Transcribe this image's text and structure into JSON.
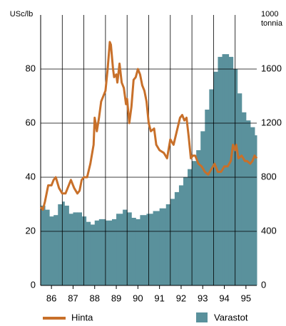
{
  "chart_data": {
    "type": "line-area-dual",
    "ylabel": "USc/lb",
    "y2label": [
      "1000",
      "tonnia"
    ],
    "xlim": [
      86,
      96
    ],
    "xticks": [
      {
        "value": 86.5,
        "label": "86"
      },
      {
        "value": 87.5,
        "label": "87"
      },
      {
        "value": 88.5,
        "label": "88"
      },
      {
        "value": 89.5,
        "label": "89"
      },
      {
        "value": 90.5,
        "label": "90"
      },
      {
        "value": 91.5,
        "label": "91"
      },
      {
        "value": 92.5,
        "label": "92"
      },
      {
        "value": 93.5,
        "label": "93"
      },
      {
        "value": 94.5,
        "label": "94"
      },
      {
        "value": 95.5,
        "label": "95"
      }
    ],
    "ylim": [
      0,
      100
    ],
    "yticks": [
      0,
      20,
      40,
      60,
      80
    ],
    "y2lim": [
      0,
      2000
    ],
    "y2ticks": [
      0,
      400,
      800,
      1200,
      1600
    ],
    "grid": true,
    "series": [
      {
        "name": "Hinta",
        "kind": "line",
        "color": "#c8702a",
        "x": [
          86.0,
          86.1,
          86.2,
          86.35,
          86.5,
          86.6,
          86.7,
          86.85,
          87.0,
          87.15,
          87.3,
          87.4,
          87.55,
          87.7,
          87.8,
          87.9,
          88.0,
          88.15,
          88.3,
          88.45,
          88.5,
          88.6,
          88.7,
          88.8,
          88.9,
          89.0,
          89.1,
          89.2,
          89.25,
          89.35,
          89.4,
          89.5,
          89.55,
          89.65,
          89.75,
          89.85,
          89.95,
          90.0,
          90.1,
          90.2,
          90.3,
          90.4,
          90.5,
          90.6,
          90.7,
          90.8,
          90.9,
          91.0,
          91.1,
          91.25,
          91.35,
          91.5,
          91.7,
          91.85,
          92.0,
          92.15,
          92.3,
          92.45,
          92.55,
          92.65,
          92.75,
          92.85,
          92.95,
          93.05,
          93.15,
          93.3,
          93.45,
          93.6,
          93.75,
          93.9,
          94.05,
          94.2,
          94.35,
          94.5,
          94.65,
          94.8,
          94.9,
          95.0,
          95.05,
          95.15,
          95.3,
          95.45,
          95.55,
          95.7,
          95.8,
          95.9,
          96.0
        ],
        "values": [
          29,
          28,
          31,
          37,
          37,
          39,
          40,
          36,
          34,
          34,
          37,
          39,
          36,
          34,
          35,
          39,
          40,
          40,
          45,
          52,
          62,
          57,
          62,
          68,
          70,
          72,
          80,
          90,
          89,
          80,
          77,
          78,
          75,
          82,
          75,
          73,
          67,
          69,
          60,
          66,
          76,
          77,
          80,
          78,
          74,
          72,
          68,
          60,
          57,
          58,
          52,
          50,
          49,
          47,
          54,
          52,
          57,
          62,
          63,
          61,
          62,
          55,
          47,
          48,
          48,
          45,
          44,
          42,
          41,
          43,
          45,
          42,
          42,
          44,
          44,
          46,
          52,
          50,
          52,
          47,
          48,
          46,
          46,
          45,
          46,
          48,
          47
        ]
      },
      {
        "name": "Varastot",
        "kind": "area",
        "axis": "y2",
        "color": "#5a919c",
        "x": [
          86.0,
          86.2,
          86.4,
          86.6,
          86.8,
          87.0,
          87.1,
          87.3,
          87.5,
          87.7,
          87.9,
          88.1,
          88.3,
          88.5,
          88.7,
          89.0,
          89.3,
          89.5,
          89.8,
          90.0,
          90.2,
          90.4,
          90.6,
          90.9,
          91.2,
          91.5,
          91.8,
          92.0,
          92.2,
          92.4,
          92.6,
          92.8,
          93.0,
          93.2,
          93.4,
          93.6,
          93.8,
          94.0,
          94.2,
          94.4,
          94.5,
          94.7,
          94.9,
          95.1,
          95.3,
          95.5,
          95.7,
          95.9
        ],
        "values": [
          590,
          560,
          510,
          520,
          600,
          620,
          590,
          530,
          540,
          540,
          510,
          470,
          450,
          480,
          490,
          480,
          490,
          530,
          560,
          540,
          500,
          490,
          520,
          530,
          550,
          570,
          600,
          640,
          690,
          740,
          800,
          860,
          920,
          1000,
          1140,
          1300,
          1450,
          1580,
          1690,
          1710,
          1710,
          1690,
          1600,
          1420,
          1280,
          1220,
          1170,
          1110
        ]
      }
    ]
  }
}
